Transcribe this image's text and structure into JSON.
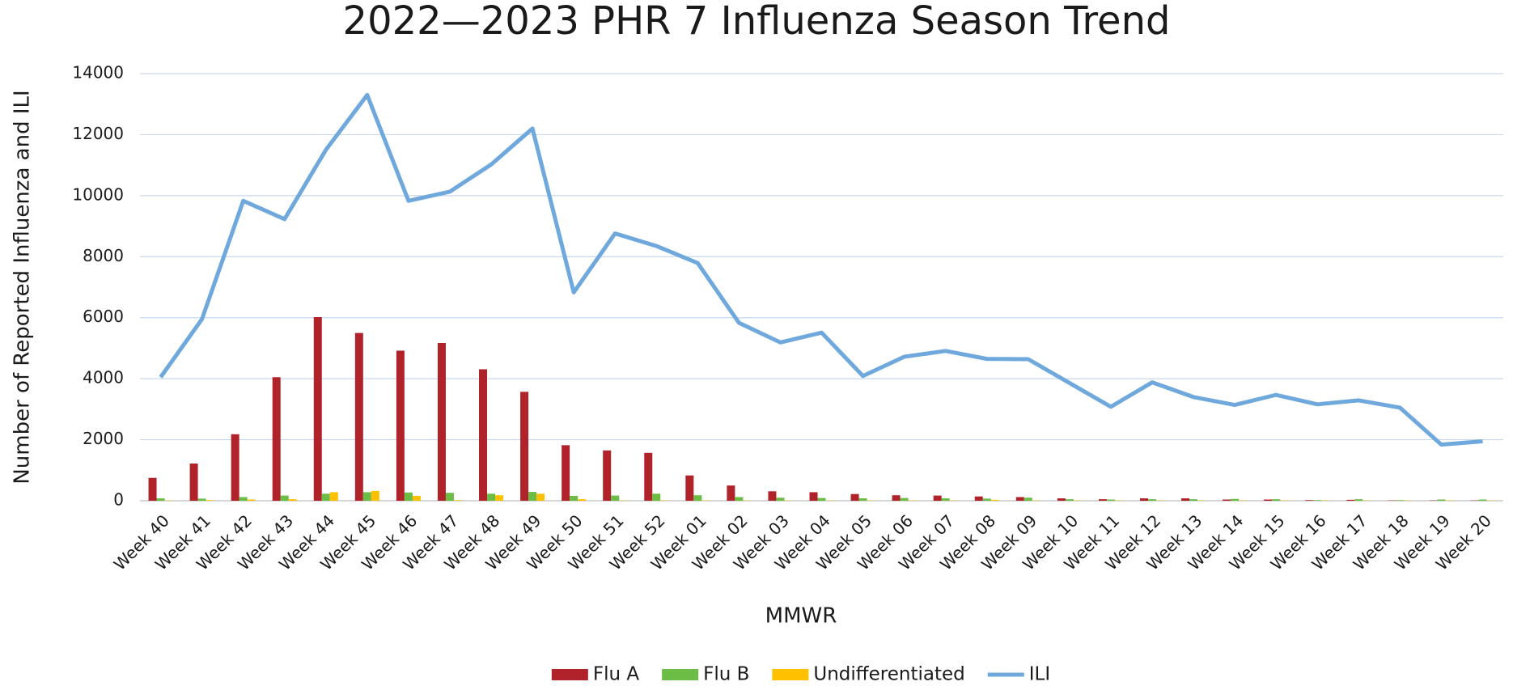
{
  "chart_data": {
    "type": "bar",
    "title": "2022—2023 PHR 7 Influenza Season Trend",
    "xlabel": "MMWR",
    "ylabel": "Number of Reported Influenza and ILI",
    "categories": [
      "Week 40",
      "Week 41",
      "Week 42",
      "Week 43",
      "Week 44",
      "Week 45",
      "Week 46",
      "Week 47",
      "Week 48",
      "Week 49",
      "Week 50",
      "Week 51",
      "Week 52",
      "Week 01",
      "Week 02",
      "Week 03",
      "Week 04",
      "Week 05",
      "Week 06",
      "Week 07",
      "Week 08",
      "Week 09",
      "Week 10",
      "Week 11",
      "Week 12",
      "Week 13",
      "Week 14",
      "Week 15",
      "Week 16",
      "Week 17",
      "Week 18",
      "Week 19",
      "Week 20"
    ],
    "series": [
      {
        "name": "Flu A",
        "color": "#b0232a",
        "type": "bar",
        "values": [
          750,
          1220,
          2180,
          4050,
          6020,
          5500,
          4920,
          5170,
          4310,
          3570,
          1820,
          1650,
          1570,
          830,
          500,
          310,
          280,
          220,
          180,
          170,
          140,
          120,
          80,
          50,
          80,
          80,
          40,
          40,
          20,
          30,
          10,
          10,
          10
        ]
      },
      {
        "name": "Flu B",
        "color": "#6cbd45",
        "type": "bar",
        "values": [
          80,
          70,
          120,
          170,
          230,
          280,
          270,
          260,
          230,
          290,
          160,
          170,
          230,
          180,
          120,
          100,
          90,
          80,
          90,
          80,
          70,
          100,
          50,
          40,
          50,
          50,
          60,
          50,
          20,
          50,
          20,
          40,
          40
        ]
      },
      {
        "name": "Undifferentiated",
        "color": "#ffc000",
        "type": "bar",
        "values": [
          10,
          20,
          40,
          50,
          280,
          320,
          160,
          20,
          180,
          230,
          50,
          10,
          10,
          10,
          10,
          10,
          10,
          10,
          10,
          10,
          30,
          10,
          10,
          10,
          10,
          10,
          10,
          10,
          10,
          10,
          10,
          10,
          10
        ]
      },
      {
        "name": "ILI",
        "color": "#6fa8dc",
        "type": "line",
        "values": [
          4050,
          5950,
          9830,
          9230,
          11500,
          13300,
          9830,
          10130,
          11020,
          12200,
          6830,
          8760,
          8350,
          7790,
          5830,
          5190,
          5510,
          4090,
          4720,
          4910,
          4650,
          4640,
          3860,
          3080,
          3880,
          3400,
          3140,
          3470,
          3160,
          3290,
          3050,
          1840,
          1950
        ]
      }
    ],
    "ylim": [
      0,
      14000
    ],
    "yticks": [
      0,
      2000,
      4000,
      6000,
      8000,
      10000,
      12000,
      14000
    ],
    "grid": true,
    "legend": "bottom"
  }
}
